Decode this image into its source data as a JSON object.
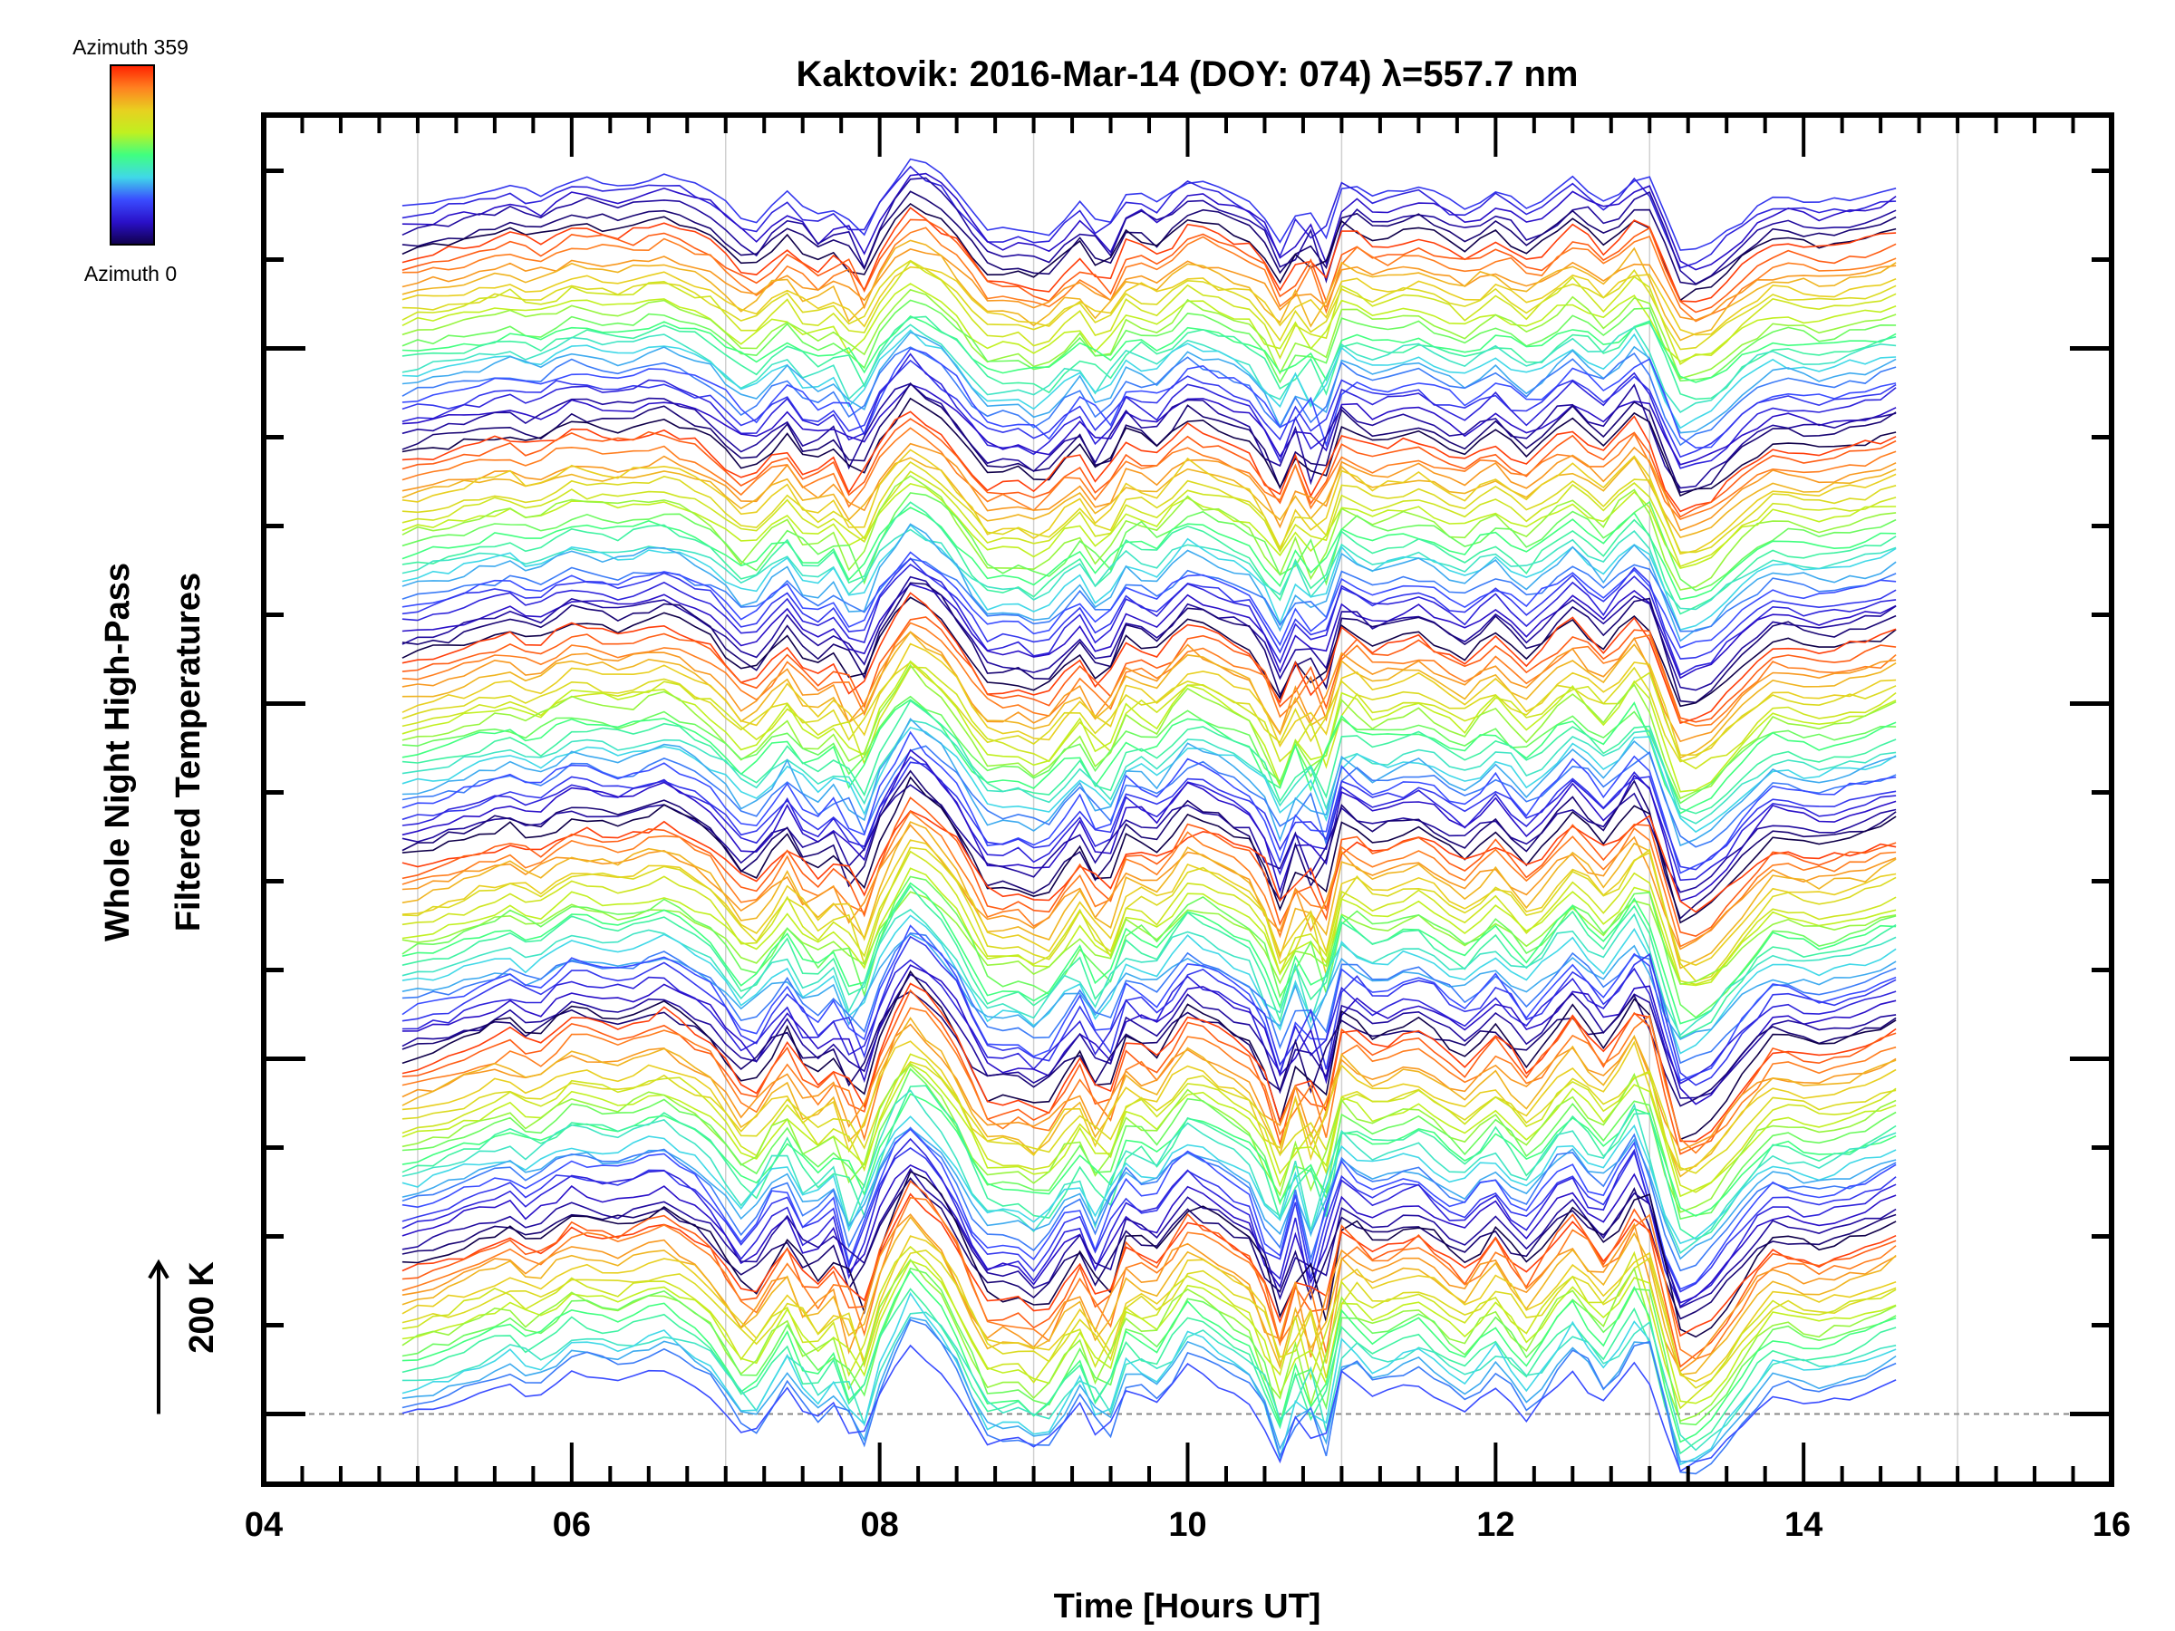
{
  "chart_data": {
    "type": "line",
    "title": "Kaktovik: 2016-Mar-14 (DOY: 074) λ=557.7 nm",
    "xlabel": "Time [Hours UT]",
    "ylabel_lines": [
      "Whole Night High-Pass",
      "Filtered Temperatures"
    ],
    "scale_bar_label": "200 K",
    "scale_bar_value_K": 200,
    "xlim": [
      4,
      16
    ],
    "xticks": [
      "04",
      "06",
      "08",
      "10",
      "12",
      "14",
      "16"
    ],
    "ylim_K": [
      -100,
      1850
    ],
    "data_time_range": [
      4.9,
      14.65
    ],
    "sample_step_hours": 0.1,
    "grid": "vertical at odd hours",
    "baseline_K": 0,
    "stack_offset_K": 12,
    "rings": 6,
    "azimuths_per_ring": 24,
    "azimuth_order_top_to_bottom": [
      75,
      60,
      45,
      30,
      15,
      0,
      345,
      330,
      315,
      300,
      285,
      270,
      255,
      240,
      225,
      210,
      195,
      180,
      165,
      150,
      135,
      120,
      105,
      90
    ],
    "ring_amplitude_factor": [
      1.0,
      1.15,
      1.3,
      1.45,
      1.6,
      1.8
    ],
    "noise_K": 9,
    "common_signal": {
      "t": [
        4.9,
        5.2,
        5.6,
        5.75,
        6.0,
        6.3,
        6.6,
        6.9,
        7.15,
        7.4,
        7.55,
        7.75,
        7.85,
        8.0,
        8.2,
        8.45,
        8.7,
        8.9,
        9.05,
        9.3,
        9.45,
        9.6,
        9.8,
        10.0,
        10.2,
        10.45,
        10.6,
        10.75,
        10.85,
        11.0,
        11.2,
        11.5,
        11.8,
        12.0,
        12.2,
        12.5,
        12.7,
        12.95,
        13.2,
        13.4,
        13.6,
        13.8,
        14.1,
        14.4,
        14.65
      ],
      "K": [
        0,
        10,
        30,
        15,
        40,
        30,
        45,
        20,
        -25,
        25,
        -15,
        10,
        -45,
        20,
        70,
        35,
        -30,
        -25,
        -40,
        10,
        -35,
        25,
        5,
        45,
        30,
        10,
        -50,
        15,
        -55,
        40,
        15,
        30,
        0,
        30,
        -5,
        45,
        10,
        60,
        -60,
        -45,
        -10,
        20,
        10,
        20,
        35
      ]
    },
    "colorbar": {
      "label_top": "Azimuth 359",
      "label_bottom": "Azimuth 0",
      "range": [
        0,
        359
      ],
      "colormap_stops": [
        "#10004a",
        "#2a10c8",
        "#3a4cff",
        "#40d8e8",
        "#40ff80",
        "#c0f020",
        "#e8d020",
        "#ff8020",
        "#ff2000"
      ]
    }
  }
}
